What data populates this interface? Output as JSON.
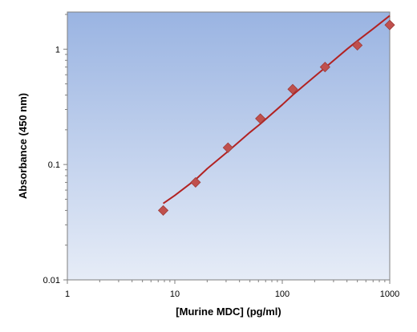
{
  "chart_data": {
    "type": "scatter",
    "title": "",
    "xlabel": "[Murine MDC] (pg/ml)",
    "ylabel": "Absorbance (450 nm)",
    "x_scale": "log",
    "y_scale": "log",
    "xlim": [
      1,
      1000
    ],
    "ylim": [
      0.01,
      2
    ],
    "x_ticks": [
      {
        "value": 1,
        "label": "1"
      },
      {
        "value": 10,
        "label": "10"
      },
      {
        "value": 100,
        "label": "100"
      },
      {
        "value": 1000,
        "label": "1000"
      }
    ],
    "y_ticks": [
      {
        "value": 0.01,
        "label": "0.01"
      },
      {
        "value": 0.1,
        "label": "0.1"
      },
      {
        "value": 1,
        "label": "1"
      }
    ],
    "grid": false,
    "legend": "none",
    "background_gradient": [
      "#9ab4e2",
      "#e6ecf7"
    ],
    "marker_color": "#c0504d",
    "line_color": "#b22222",
    "points": [
      {
        "x": 7.8,
        "y": 0.04
      },
      {
        "x": 15.6,
        "y": 0.07
      },
      {
        "x": 31.25,
        "y": 0.14
      },
      {
        "x": 62.5,
        "y": 0.25
      },
      {
        "x": 125,
        "y": 0.45
      },
      {
        "x": 250,
        "y": 0.7
      },
      {
        "x": 500,
        "y": 1.08
      },
      {
        "x": 1000,
        "y": 1.62
      }
    ],
    "fit_line": {
      "x": [
        7.8,
        10,
        15.6,
        20,
        31.25,
        50,
        62.5,
        100,
        125,
        200,
        250,
        400,
        500,
        700,
        1000
      ],
      "y": [
        0.046,
        0.054,
        0.074,
        0.092,
        0.13,
        0.19,
        0.225,
        0.33,
        0.4,
        0.58,
        0.69,
        1.0,
        1.18,
        1.5,
        1.95
      ]
    }
  }
}
